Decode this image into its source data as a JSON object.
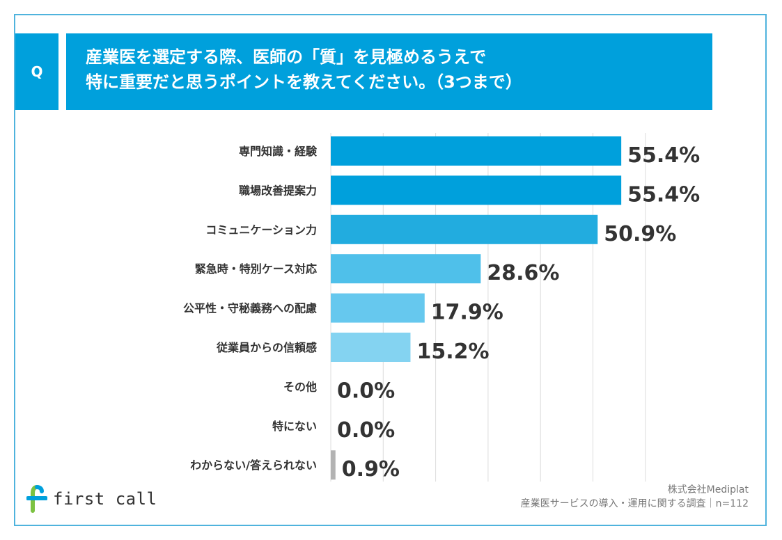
{
  "question": {
    "badge": "Q",
    "line1": "産業医を選定する際、医師の「質」を見極めるうえで",
    "line2": "特に重要だと思うポイントを教えてください。（3つまで）"
  },
  "chart_data": {
    "type": "bar",
    "orientation": "horizontal",
    "categories": [
      "専門知識・経験",
      "職場改善提案力",
      "コミュニケーション力",
      "緊急時・特別ケース対応",
      "公平性・守秘義務への配慮",
      "従業員からの信頼感",
      "その他",
      "特にない",
      "わからない/答えられない"
    ],
    "values": [
      55.4,
      55.4,
      50.9,
      28.6,
      17.9,
      15.2,
      0.0,
      0.0,
      0.9
    ],
    "value_labels": [
      "55.4%",
      "55.4%",
      "50.9%",
      "28.6%",
      "17.9%",
      "15.2%",
      "0.0%",
      "0.0%",
      "0.9%"
    ],
    "bar_colors": [
      "#00a0dc",
      "#00a0dc",
      "#22acdf",
      "#4fc0ea",
      "#66c8ee",
      "#84d3f1",
      "#9ad9f3",
      "#9ad9f3",
      "#b3b3b3"
    ],
    "xlim": [
      0,
      60
    ],
    "grid": true,
    "grid_step": 10
  },
  "logo": {
    "text": "first call",
    "colors": {
      "green": "#7cc242",
      "blue": "#00a0dc"
    }
  },
  "source": {
    "company": "株式会社Mediplat",
    "survey": "産業医サービスの導入・運用に関する調査｜n=112"
  }
}
